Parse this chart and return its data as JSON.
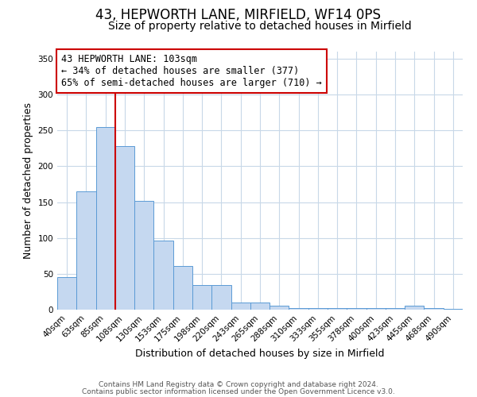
{
  "title": "43, HEPWORTH LANE, MIRFIELD, WF14 0PS",
  "subtitle": "Size of property relative to detached houses in Mirfield",
  "xlabel": "Distribution of detached houses by size in Mirfield",
  "ylabel": "Number of detached properties",
  "bin_labels": [
    "40sqm",
    "63sqm",
    "85sqm",
    "108sqm",
    "130sqm",
    "153sqm",
    "175sqm",
    "198sqm",
    "220sqm",
    "243sqm",
    "265sqm",
    "288sqm",
    "310sqm",
    "333sqm",
    "355sqm",
    "378sqm",
    "400sqm",
    "423sqm",
    "445sqm",
    "468sqm",
    "490sqm"
  ],
  "bar_heights": [
    45,
    165,
    255,
    228,
    152,
    96,
    61,
    34,
    34,
    10,
    10,
    5,
    2,
    2,
    2,
    2,
    2,
    2,
    5,
    2,
    1
  ],
  "bar_color": "#c5d8f0",
  "bar_edgecolor": "#5b9bd5",
  "vline_x_index": 3,
  "vline_color": "#cc0000",
  "annotation_title": "43 HEPWORTH LANE: 103sqm",
  "annotation_line1": "← 34% of detached houses are smaller (377)",
  "annotation_line2": "65% of semi-detached houses are larger (710) →",
  "annotation_box_edgecolor": "#cc0000",
  "ylim": [
    0,
    360
  ],
  "yticks": [
    0,
    50,
    100,
    150,
    200,
    250,
    300,
    350
  ],
  "footnote1": "Contains HM Land Registry data © Crown copyright and database right 2024.",
  "footnote2": "Contains public sector information licensed under the Open Government Licence v3.0.",
  "bg_color": "#ffffff",
  "grid_color": "#c8d8e8",
  "title_fontsize": 12,
  "subtitle_fontsize": 10,
  "axis_label_fontsize": 9,
  "tick_fontsize": 7.5,
  "annotation_fontsize": 8.5,
  "footnote_fontsize": 6.5
}
